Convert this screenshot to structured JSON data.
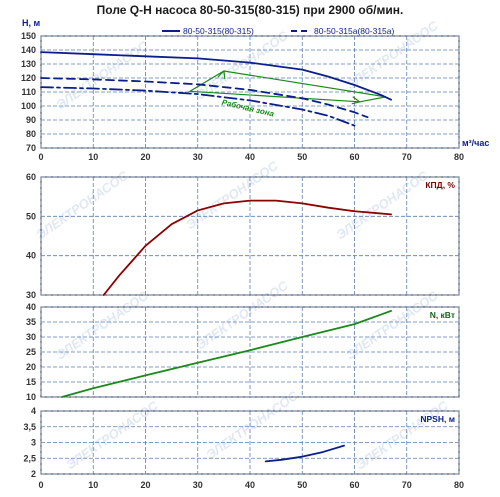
{
  "title": "Поле Q-H насоса 80-50-315(80-315) при 2900 об/мин.",
  "watermark": "ЭЛЕКТРОНАСОС",
  "colors": {
    "grid": "#5b7fb5",
    "navy": "#0b1f8a",
    "darkred": "#8b0000",
    "green": "#1a8a1a",
    "axis": "#333333"
  },
  "chart_data": [
    {
      "id": "qh",
      "type": "line",
      "ylabel": "Н, м",
      "xlabel": "м³/час",
      "xlim": [
        0,
        80
      ],
      "ylim": [
        70,
        150
      ],
      "xticks": [
        0,
        10,
        20,
        30,
        40,
        50,
        60,
        70,
        80
      ],
      "yticks": [
        70,
        80,
        90,
        100,
        110,
        120,
        130,
        140,
        150
      ],
      "grid": true,
      "legend": "top",
      "series": [
        {
          "name": "80-50-315(80-315)",
          "style": "solid",
          "x": [
            0,
            10,
            20,
            30,
            40,
            50,
            55,
            60,
            65,
            67
          ],
          "y": [
            138.5,
            137,
            135.5,
            134,
            131,
            126,
            121,
            115,
            108,
            104.5
          ]
        },
        {
          "name": "80-50-315а(80-315а)",
          "style": "dashed",
          "x": [
            0,
            10,
            20,
            30,
            40,
            50,
            55,
            60,
            62.5
          ],
          "y": [
            120,
            119,
            117.5,
            115.5,
            111.5,
            105.5,
            101,
            95.5,
            92
          ]
        },
        {
          "name": "",
          "style": "dashdot",
          "x": [
            0,
            10,
            20,
            30,
            40,
            50,
            55,
            60
          ],
          "y": [
            113.5,
            112.5,
            111,
            108.5,
            104,
            97.5,
            93,
            86
          ]
        }
      ],
      "working_zone": {
        "label": "Рабочая зона",
        "polygon": [
          [
            28.5,
            110.5
          ],
          [
            35,
            125
          ],
          [
            66,
            106.5
          ],
          [
            61,
            103
          ]
        ]
      }
    },
    {
      "id": "efficiency",
      "type": "line",
      "label": "КПД, %",
      "xlim": [
        0,
        80
      ],
      "ylim": [
        30,
        60
      ],
      "yticks": [
        30,
        40,
        50,
        60
      ],
      "grid": true,
      "series": [
        {
          "name": "",
          "x": [
            12,
            15,
            20,
            25,
            30,
            35,
            40,
            45,
            50,
            55,
            60,
            67
          ],
          "y": [
            30,
            35,
            42.5,
            48,
            51.5,
            53.3,
            54,
            54,
            53.3,
            52.2,
            51.3,
            50.5
          ]
        }
      ]
    },
    {
      "id": "power",
      "type": "line",
      "label": "N, кВт",
      "xlim": [
        0,
        80
      ],
      "ylim": [
        10,
        40
      ],
      "yticks": [
        10,
        15,
        20,
        25,
        30,
        35,
        40
      ],
      "grid": true,
      "series": [
        {
          "name": "",
          "x": [
            4,
            10,
            20,
            30,
            40,
            50,
            60,
            67
          ],
          "y": [
            10,
            12.9,
            17.2,
            21.4,
            25.6,
            30,
            34.3,
            38.7
          ]
        }
      ]
    },
    {
      "id": "npsh",
      "type": "line",
      "label": "NPSH, м",
      "xlabel": "",
      "xlim": [
        0,
        80
      ],
      "ylim": [
        2,
        4
      ],
      "xticks": [
        0,
        10,
        20,
        30,
        40,
        50,
        60,
        70,
        80
      ],
      "yticks": [
        2,
        2.5,
        3,
        3.5,
        4
      ],
      "grid": true,
      "series": [
        {
          "name": "",
          "x": [
            43,
            46,
            50,
            54,
            58
          ],
          "y": [
            2.4,
            2.45,
            2.55,
            2.7,
            2.9
          ]
        }
      ]
    }
  ]
}
